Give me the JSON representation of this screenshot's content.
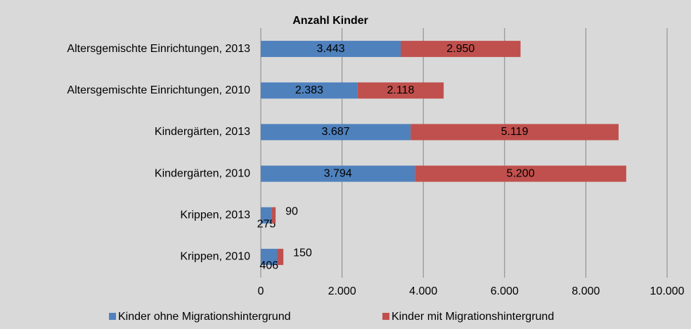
{
  "chart_data": {
    "type": "barh_stacked",
    "title": "Anzahl Kinder",
    "categories": [
      "Altersgemischte Einrichtungen, 2013",
      "Altersgemischte Einrichtungen, 2010",
      "Kindergärten, 2013",
      "Kindergärten, 2010",
      "Krippen, 2013",
      "Krippen, 2010"
    ],
    "series": [
      {
        "name": "Kinder ohne Migrationshintergrund",
        "color": "#4f81bd",
        "values": [
          3443,
          2383,
          3687,
          3794,
          275,
          406
        ],
        "value_labels": [
          "3.443",
          "2.383",
          "3.687",
          "3.794",
          "275",
          "406"
        ]
      },
      {
        "name": "Kinder mit Migrationshintergrund",
        "color": "#c0504d",
        "values": [
          2950,
          2118,
          5119,
          5200,
          90,
          150
        ],
        "value_labels": [
          "2.950",
          "2.118",
          "5.119",
          "5.200",
          "90",
          "150"
        ]
      }
    ],
    "xlim": [
      0,
      10000
    ],
    "xticks": [
      0,
      {
        "value": 2000,
        "label": "2.000"
      },
      {
        "value": 4000,
        "label": "4.000"
      },
      {
        "value": 6000,
        "label": "6.000"
      },
      {
        "value": 8000,
        "label": "8.000"
      },
      {
        "value": 10000,
        "label": "10.000"
      }
    ],
    "grid": true,
    "legend": "bottom"
  }
}
